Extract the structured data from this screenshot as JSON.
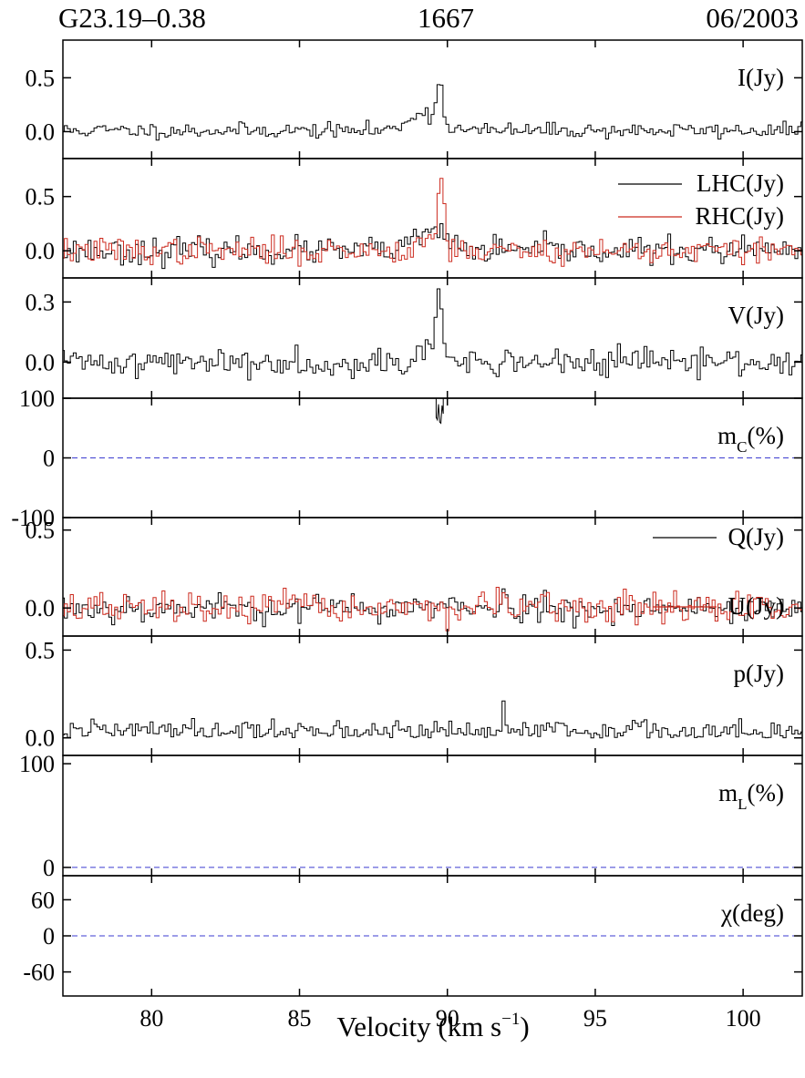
{
  "header": {
    "source": "G23.19–0.38",
    "frequency": "1667",
    "date": "06/2003"
  },
  "x_axis": {
    "label": "Velocity (km s",
    "label_sup": "−1",
    "label_close": ")",
    "range": [
      77.0,
      102.0
    ],
    "ticks": [
      80,
      85,
      90,
      95,
      100
    ]
  },
  "colors": {
    "primary": "#000000",
    "secondary": "#cc2a1e",
    "zero_line": "#3b3bd0"
  },
  "chart_data": [
    {
      "id": "I",
      "type": "line",
      "label": "I(Jy)",
      "ylim": [
        -0.25,
        0.85
      ],
      "yticks": [
        0.0,
        0.5
      ],
      "ytick_labels": [
        "0.0",
        "0.5"
      ],
      "grid": false,
      "series": [
        {
          "name": "I(Jy)",
          "color": "#000000",
          "noise": 0.035,
          "base": 0.01,
          "seed": 11,
          "peaks": [
            {
              "v": 89.75,
              "amp": 0.38,
              "w": 0.1
            },
            {
              "v": 89.3,
              "amp": 0.14,
              "w": 0.45
            },
            {
              "v": 88.8,
              "amp": 0.06,
              "w": 0.3
            }
          ]
        }
      ]
    },
    {
      "id": "LR",
      "type": "line",
      "label": "",
      "ylim": [
        -0.25,
        0.85
      ],
      "yticks": [
        0.0,
        0.5
      ],
      "ytick_labels": [
        "0.0",
        "0.5"
      ],
      "grid": false,
      "series": [
        {
          "name": "LHC(Jy)",
          "color": "#000000",
          "noise": 0.06,
          "base": 0.0,
          "seed": 23,
          "peaks": [
            {
              "v": 89.5,
              "amp": 0.18,
              "w": 0.5
            }
          ]
        },
        {
          "name": "RHC(Jy)",
          "color": "#cc2a1e",
          "noise": 0.06,
          "base": 0.0,
          "seed": 37,
          "peaks": [
            {
              "v": 89.8,
              "amp": 0.62,
              "w": 0.1
            },
            {
              "v": 89.4,
              "amp": 0.12,
              "w": 0.4
            }
          ]
        }
      ]
    },
    {
      "id": "V",
      "type": "line",
      "label": "V(Jy)",
      "ylim": [
        -0.18,
        0.42
      ],
      "yticks": [
        0.0,
        0.3
      ],
      "ytick_labels": [
        "0.0",
        "0.3"
      ],
      "grid": false,
      "series": [
        {
          "name": "V(Jy)",
          "color": "#000000",
          "noise": 0.035,
          "base": 0.0,
          "seed": 41,
          "peaks": [
            {
              "v": 89.7,
              "amp": 0.26,
              "w": 0.12
            },
            {
              "v": 89.35,
              "amp": 0.06,
              "w": 0.35
            }
          ]
        }
      ]
    },
    {
      "id": "mc",
      "type": "line",
      "label": "m",
      "label_sub": "C",
      "label_tail": "(%)",
      "ylim": [
        -100,
        100
      ],
      "yticks": [
        -100,
        0,
        100
      ],
      "ytick_labels": [
        "-100",
        "0",
        "100"
      ],
      "grid": false,
      "zero_line": true,
      "series": [
        {
          "name": "mC(%)",
          "color": "#000000",
          "x": [
            89.62,
            89.62,
            89.66,
            89.7,
            89.74,
            89.78,
            89.82,
            89.86,
            89.86
          ],
          "y": [
            100,
            68,
            64,
            90,
            60,
            58,
            88,
            74,
            100
          ]
        }
      ]
    },
    {
      "id": "QU",
      "type": "line",
      "label": "",
      "ylim": [
        -0.18,
        0.58
      ],
      "yticks": [
        0.0,
        0.5
      ],
      "ytick_labels": [
        "0.0",
        "0.5"
      ],
      "grid": false,
      "series": [
        {
          "name": "Q(Jy)",
          "color": "#000000",
          "noise": 0.045,
          "base": 0.0,
          "seed": 53,
          "peaks": [
            {
              "v": 91.9,
              "amp": 0.2,
              "w": 0.04
            }
          ]
        },
        {
          "name": "U(Jy)",
          "color": "#cc2a1e",
          "noise": 0.05,
          "base": 0.0,
          "seed": 67,
          "peaks": []
        }
      ]
    },
    {
      "id": "p",
      "type": "line",
      "label": "p(Jy)",
      "ylim": [
        -0.1,
        0.58
      ],
      "yticks": [
        0.0,
        0.5
      ],
      "ytick_labels": [
        "0.0",
        "0.5"
      ],
      "grid": false,
      "series": [
        {
          "name": "p(Jy)",
          "color": "#000000",
          "noise": 0.035,
          "base": 0.035,
          "positive": true,
          "seed": 79,
          "peaks": [
            {
              "v": 91.9,
              "amp": 0.16,
              "w": 0.04
            },
            {
              "v": 88.3,
              "amp": 0.08,
              "w": 0.05
            }
          ]
        }
      ]
    },
    {
      "id": "ml",
      "type": "line",
      "label": "m",
      "label_sub": "L",
      "label_tail": "(%)",
      "ylim": [
        -8,
        108
      ],
      "yticks": [
        0,
        100
      ],
      "ytick_labels": [
        "0",
        "100"
      ],
      "grid": false,
      "zero_line": true,
      "series": []
    },
    {
      "id": "chi",
      "type": "line",
      "label": "χ(deg)",
      "ylim": [
        -100,
        100
      ],
      "yticks": [
        -60,
        0,
        60
      ],
      "ytick_labels": [
        "-60",
        "0",
        "60"
      ],
      "grid": false,
      "zero_line": true,
      "series": []
    }
  ]
}
